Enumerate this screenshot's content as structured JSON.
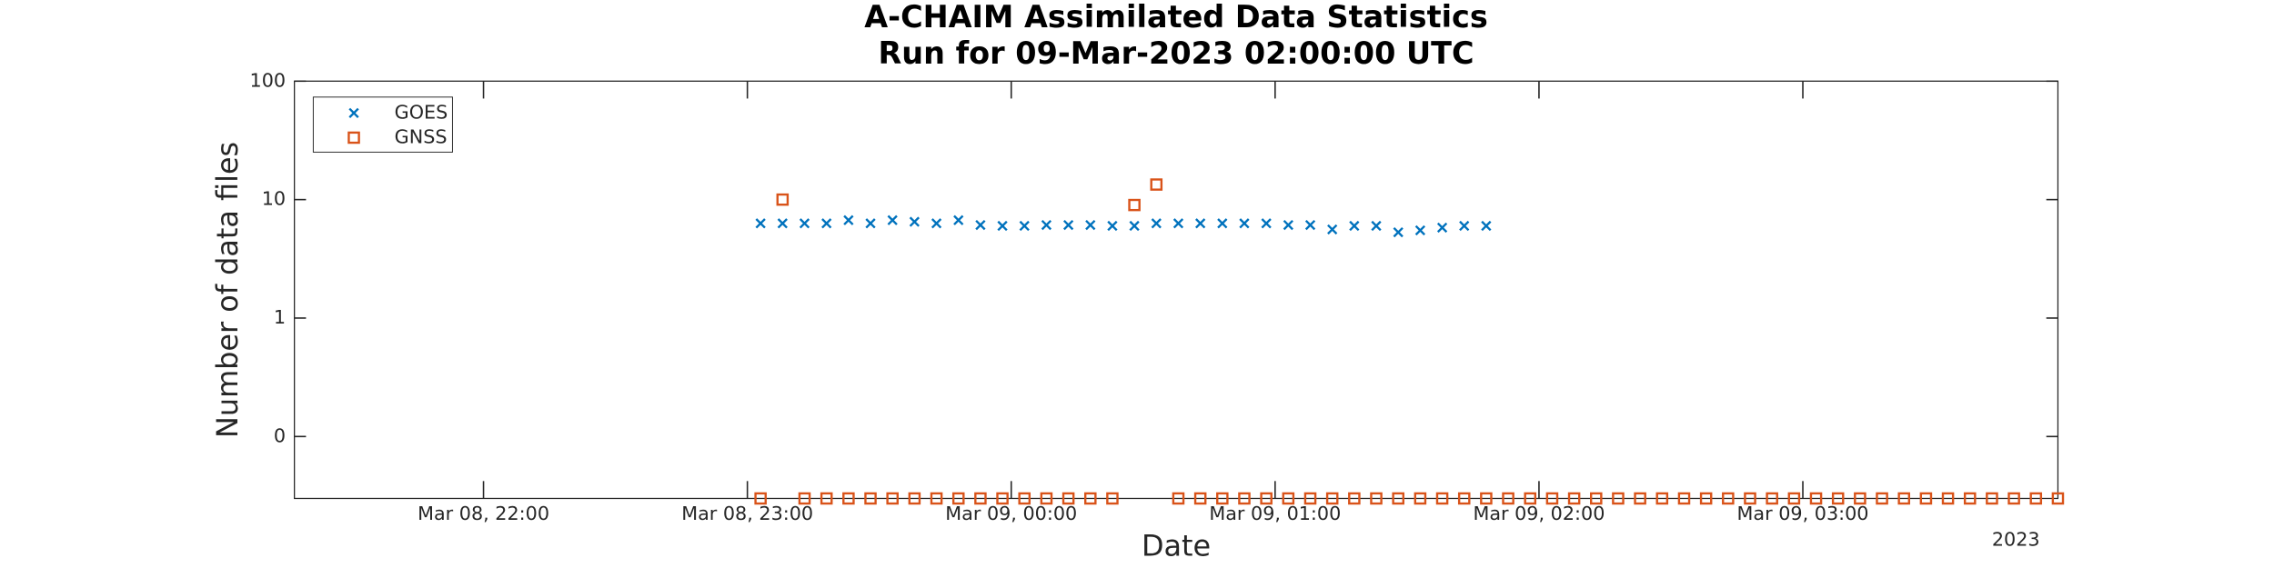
{
  "chart_data": {
    "type": "scatter",
    "title": "A-CHAIM Assimilated Data Statistics",
    "subtitle": "Run for 09-Mar-2023 02:00:00 UTC",
    "x_label": "Date",
    "y_label": "Number of data files",
    "x_annotation": "2023",
    "log_y": true,
    "legend": "upper left",
    "xlim": [
      "2023-03-08T21:17",
      "2023-03-09T03:58"
    ],
    "xticks": [
      {
        "value": "2023-03-08T22:00",
        "label": "Mar 08, 22:00"
      },
      {
        "value": "2023-03-08T23:00",
        "label": "Mar 08, 23:00"
      },
      {
        "value": "2023-03-09T00:00",
        "label": "Mar 09, 00:00"
      },
      {
        "value": "2023-03-09T01:00",
        "label": "Mar 09, 01:00"
      },
      {
        "value": "2023-03-09T02:00",
        "label": "Mar 09, 02:00"
      },
      {
        "value": "2023-03-09T03:00",
        "label": "Mar 09, 03:00"
      }
    ],
    "ylim": [
      0.03,
      100
    ],
    "yticks": [
      100,
      10,
      1,
      {
        "value": 0.1,
        "label": "0"
      }
    ],
    "x": [
      "2023-03-08T23:03",
      "2023-03-08T23:08",
      "2023-03-08T23:13",
      "2023-03-08T23:18",
      "2023-03-08T23:23",
      "2023-03-08T23:28",
      "2023-03-08T23:33",
      "2023-03-08T23:38",
      "2023-03-08T23:43",
      "2023-03-08T23:48",
      "2023-03-08T23:53",
      "2023-03-08T23:58",
      "2023-03-09T00:03",
      "2023-03-09T00:08",
      "2023-03-09T00:13",
      "2023-03-09T00:18",
      "2023-03-09T00:23",
      "2023-03-09T00:28",
      "2023-03-09T00:33",
      "2023-03-09T00:38",
      "2023-03-09T00:43",
      "2023-03-09T00:48",
      "2023-03-09T00:53",
      "2023-03-09T00:58",
      "2023-03-09T01:03",
      "2023-03-09T01:08",
      "2023-03-09T01:13",
      "2023-03-09T01:18",
      "2023-03-09T01:23",
      "2023-03-09T01:28",
      "2023-03-09T01:33",
      "2023-03-09T01:38",
      "2023-03-09T01:43",
      "2023-03-09T01:48",
      "2023-03-09T01:53",
      "2023-03-09T01:58",
      "2023-03-09T02:03",
      "2023-03-09T02:08",
      "2023-03-09T02:13",
      "2023-03-09T02:18",
      "2023-03-09T02:23",
      "2023-03-09T02:28",
      "2023-03-09T02:33",
      "2023-03-09T02:38",
      "2023-03-09T02:43",
      "2023-03-09T02:48",
      "2023-03-09T02:53",
      "2023-03-09T02:58",
      "2023-03-09T03:03",
      "2023-03-09T03:08",
      "2023-03-09T03:13",
      "2023-03-09T03:18",
      "2023-03-09T03:23",
      "2023-03-09T03:28",
      "2023-03-09T03:33",
      "2023-03-09T03:38",
      "2023-03-09T03:43",
      "2023-03-09T03:48",
      "2023-03-09T03:53",
      "2023-03-09T03:58"
    ],
    "series": [
      {
        "name": "GOES",
        "color": "#0072BD",
        "marker": "x",
        "values": [
          6.3,
          6.3,
          6.3,
          6.3,
          6.7,
          6.3,
          6.7,
          6.5,
          6.3,
          6.7,
          6.1,
          6.0,
          6.0,
          6.1,
          6.1,
          6.1,
          6.0,
          6.0,
          6.3,
          6.3,
          6.3,
          6.3,
          6.3,
          6.3,
          6.1,
          6.1,
          5.6,
          6.0,
          6.0,
          5.3,
          5.5,
          5.8,
          6.0,
          6.0,
          null,
          null,
          null,
          null,
          null,
          null,
          null,
          null,
          null,
          null,
          null,
          null,
          null,
          null,
          null,
          null,
          null,
          null,
          null,
          null,
          null,
          null,
          null,
          null,
          null,
          null
        ]
      },
      {
        "name": "GNSS",
        "color": "#D95319",
        "marker": "square",
        "values": [
          0.03,
          10,
          0.03,
          0.03,
          0.03,
          0.03,
          0.03,
          0.03,
          0.03,
          0.03,
          0.03,
          0.03,
          0.03,
          0.03,
          0.03,
          0.03,
          0.03,
          9,
          13.4,
          0.03,
          0.03,
          0.03,
          0.03,
          0.03,
          0.03,
          0.03,
          0.03,
          0.03,
          0.03,
          0.03,
          0.03,
          0.03,
          0.03,
          0.03,
          0.03,
          0.03,
          0.03,
          0.03,
          0.03,
          0.03,
          0.03,
          0.03,
          0.03,
          0.03,
          0.03,
          0.03,
          0.03,
          0.03,
          0.03,
          0.03,
          0.03,
          0.03,
          0.03,
          0.03,
          0.03,
          0.03,
          0.03,
          0.03,
          0.03,
          0.03
        ]
      }
    ]
  }
}
